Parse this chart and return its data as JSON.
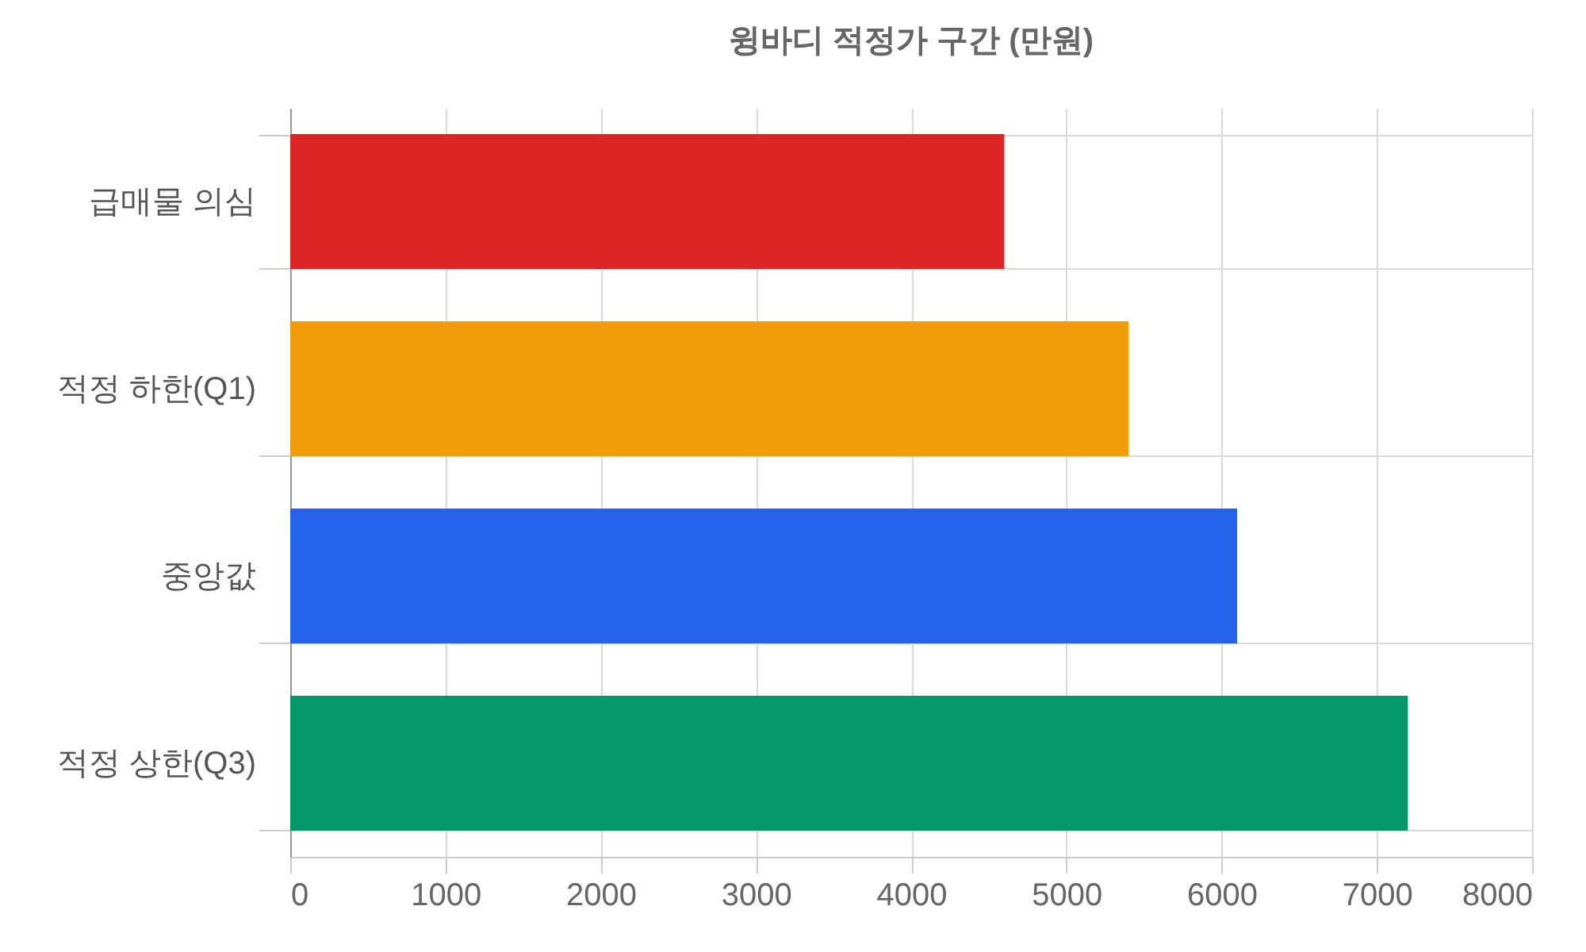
{
  "chart_data": {
    "type": "bar",
    "orientation": "horizontal",
    "title": "윙바디 적정가 구간 (만원)",
    "categories": [
      "급매물 의심",
      "적정 하한(Q1)",
      "중앙값",
      "적정 상한(Q3)"
    ],
    "values": [
      4600,
      5400,
      6100,
      7200
    ],
    "colors": [
      "#dc2626",
      "#f39c0b",
      "#2563eb",
      "#059669"
    ],
    "xlim": [
      0,
      8000
    ],
    "xticks": [
      0,
      1000,
      2000,
      3000,
      4000,
      5000,
      6000,
      7000,
      8000
    ],
    "grid": true
  }
}
